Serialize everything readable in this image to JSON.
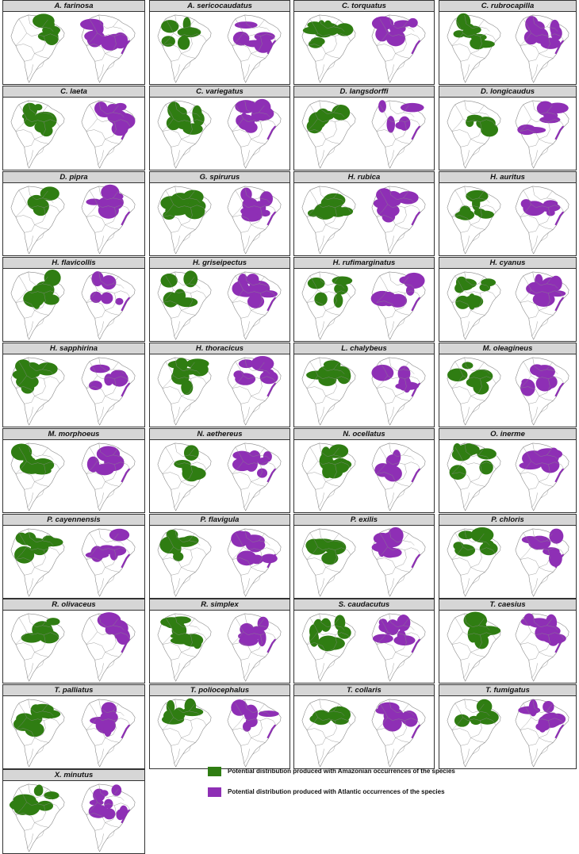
{
  "colors": {
    "amazonian": "#2f7d12",
    "atlantic": "#8e2fb5",
    "outline": "#8a8a8a",
    "header": "#d6d6d6"
  },
  "panels": [
    {
      "species": "A. farinosa"
    },
    {
      "species": "A. sericocaudatus"
    },
    {
      "species": "C. torquatus"
    },
    {
      "species": "C. rubrocapilla"
    },
    {
      "species": "C. laeta"
    },
    {
      "species": "C. variegatus"
    },
    {
      "species": "D. langsdorffi"
    },
    {
      "species": "D. longicaudus"
    },
    {
      "species": "D. pipra"
    },
    {
      "species": "G. spirurus"
    },
    {
      "species": "H. rubica"
    },
    {
      "species": "H. auritus"
    },
    {
      "species": "H. flavicollis"
    },
    {
      "species": "H. griseipectus"
    },
    {
      "species": "H. rufimarginatus"
    },
    {
      "species": "H. cyanus"
    },
    {
      "species": "H. sapphirina"
    },
    {
      "species": "H. thoracicus"
    },
    {
      "species": "L. chalybeus"
    },
    {
      "species": "M. oleagineus"
    },
    {
      "species": "M. morphoeus"
    },
    {
      "species": "N. aethereus"
    },
    {
      "species": "N. ocellatus"
    },
    {
      "species": "O. inerme"
    },
    {
      "species": "P. cayennensis"
    },
    {
      "species": "P. flavigula"
    },
    {
      "species": "P. exilis"
    },
    {
      "species": "P. chloris"
    },
    {
      "species": "R. olivaceus"
    },
    {
      "species": "R. simplex"
    },
    {
      "species": "S. caudacutus"
    },
    {
      "species": "T. caesius"
    },
    {
      "species": "T. palliatus"
    },
    {
      "species": "T. poliocephalus"
    },
    {
      "species": "T. collaris"
    },
    {
      "species": "T. fumigatus"
    },
    {
      "species": "X. minutus"
    }
  ],
  "legend": [
    {
      "label": "Potential distribution produced with Amazonian occurrences of the species",
      "color": "#2f7d12"
    },
    {
      "label": "Potential distribution produced with Atlantic occurrences of the species",
      "color": "#8e2fb5"
    }
  ]
}
